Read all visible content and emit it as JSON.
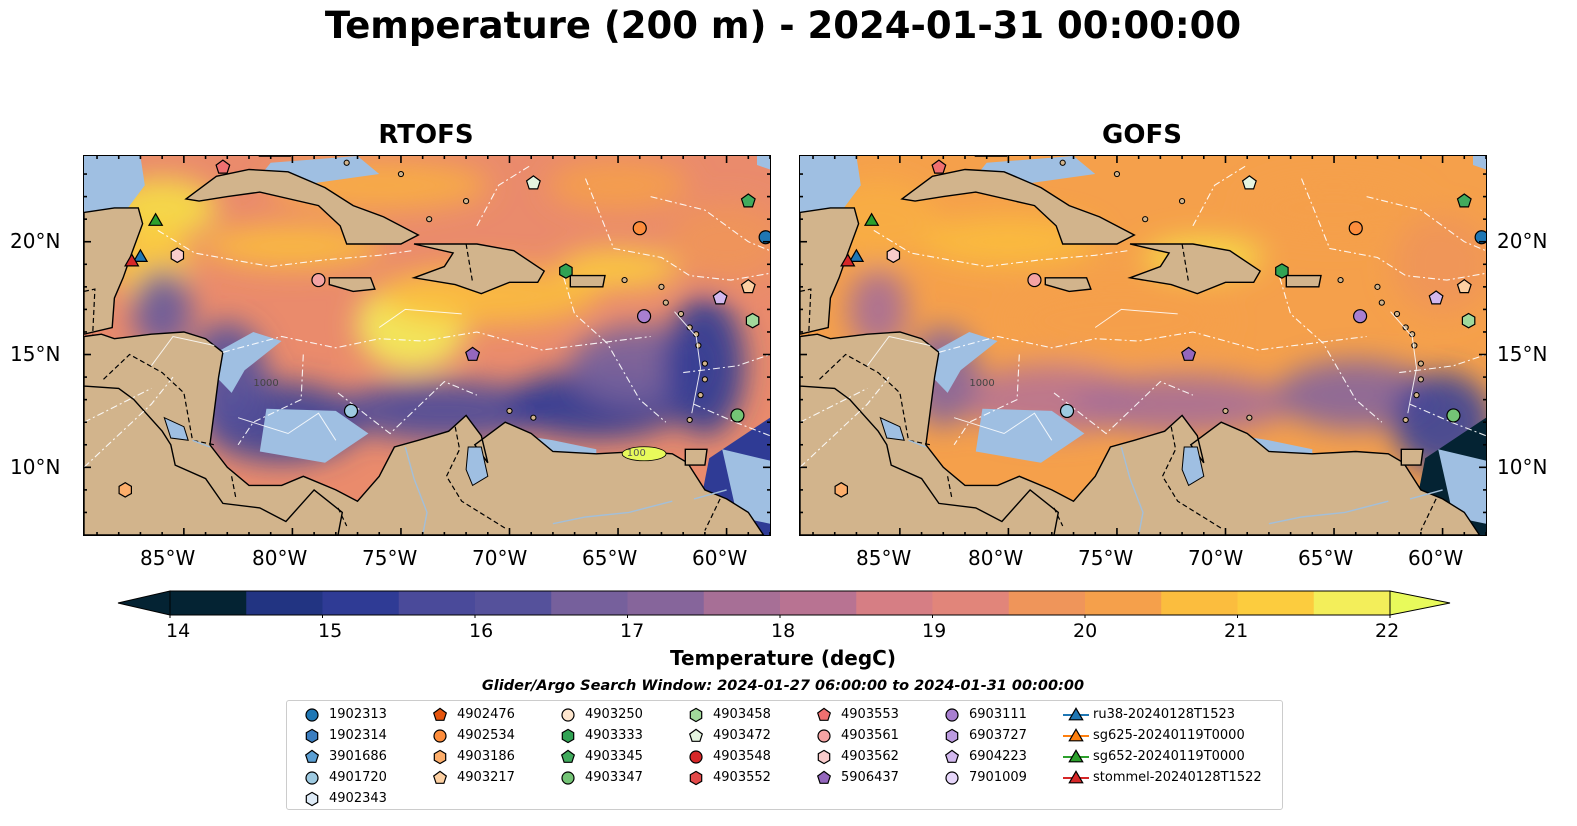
{
  "title": "Temperature (200 m) - 2024-01-31 00:00:00",
  "panels": [
    {
      "title": "RTOFS",
      "side_labels": "left"
    },
    {
      "title": "GOFS",
      "side_labels": "right"
    }
  ],
  "axes": {
    "x_ticks": [
      "85°W",
      "80°W",
      "75°W",
      "70°W",
      "65°W",
      "60°W"
    ],
    "y_ticks": [
      "20°N",
      "15°N",
      "10°N"
    ]
  },
  "contour_labels": {
    "rtofs_1000": "1000",
    "rtofs_100": "100",
    "gofs_1000": "1000"
  },
  "colorbar": {
    "label": "Temperature (degC)",
    "min": 14,
    "max": 22,
    "step": 0.5,
    "ticks": [
      "14",
      "15",
      "16",
      "17",
      "18",
      "19",
      "20",
      "21",
      "22"
    ],
    "extend": "both",
    "colormap": "thermal",
    "colors": [
      "#042333",
      "#0d2a5a",
      "#223482",
      "#2f3b95",
      "#3c4398",
      "#4a4a9a",
      "#55519b",
      "#665a9c",
      "#76609c",
      "#86659b",
      "#96699a",
      "#a76f96",
      "#b87392",
      "#c8788d",
      "#d67e84",
      "#e1857a",
      "#ea8b6c",
      "#ef955a",
      "#f5a04b",
      "#f8ae43",
      "#fbbd3e",
      "#fccc3e",
      "#f6df47",
      "#f3ee5a"
    ],
    "over_color": "#e8fa5b",
    "under_color": "#042333"
  },
  "map_colors": {
    "land": "#d2b48c",
    "shelf": "#9fbfe2",
    "deep_cold": "#042333",
    "warm": "#ef955a",
    "hot": "#f3ee5a"
  },
  "search_window": "Glider/Argo Search Window: 2024-01-27 06:00:00 to 2024-01-31 00:00:00",
  "legend": {
    "columns": [
      [
        {
          "label": "1902313",
          "marker": "circle",
          "color": "#1f77b4"
        },
        {
          "label": "1902314",
          "marker": "hexagon",
          "color": "#3a7dbf"
        },
        {
          "label": "3901686",
          "marker": "pentagon",
          "color": "#5b9fd3"
        },
        {
          "label": "4901720",
          "marker": "circle",
          "color": "#9ecae1"
        },
        {
          "label": "4902343",
          "marker": "hexagon",
          "color": "#deebf7"
        }
      ],
      [
        {
          "label": "4902476",
          "marker": "pentagon",
          "color": "#e6550d"
        },
        {
          "label": "4902534",
          "marker": "circle",
          "color": "#fd8d3c"
        },
        {
          "label": "4903186",
          "marker": "hexagon",
          "color": "#fdae6b"
        },
        {
          "label": "4903217",
          "marker": "pentagon",
          "color": "#fdd0a2"
        }
      ],
      [
        {
          "label": "4903250",
          "marker": "circle",
          "color": "#fee6ce"
        },
        {
          "label": "4903333",
          "marker": "hexagon",
          "color": "#31a354"
        },
        {
          "label": "4903345",
          "marker": "pentagon",
          "color": "#41ab5d"
        },
        {
          "label": "4903347",
          "marker": "circle",
          "color": "#74c476"
        }
      ],
      [
        {
          "label": "4903458",
          "marker": "hexagon",
          "color": "#a1d99b"
        },
        {
          "label": "4903472",
          "marker": "pentagon",
          "color": "#e5f5e0"
        },
        {
          "label": "4903548",
          "marker": "circle",
          "color": "#d62728"
        },
        {
          "label": "4903552",
          "marker": "hexagon",
          "color": "#e34a4a"
        }
      ],
      [
        {
          "label": "4903553",
          "marker": "pentagon",
          "color": "#f07070"
        },
        {
          "label": "4903561",
          "marker": "circle",
          "color": "#f4a3a3"
        },
        {
          "label": "4903562",
          "marker": "hexagon",
          "color": "#f9cccc"
        },
        {
          "label": "5906437",
          "marker": "pentagon",
          "color": "#9467bd"
        }
      ],
      [
        {
          "label": "6903111",
          "marker": "circle",
          "color": "#a87fd0"
        },
        {
          "label": "6903727",
          "marker": "hexagon",
          "color": "#bc9be0"
        },
        {
          "label": "6904223",
          "marker": "pentagon",
          "color": "#d2b8ee"
        },
        {
          "label": "7901009",
          "marker": "circle",
          "color": "#e6d6fa"
        }
      ],
      [
        {
          "label": "ru38-20240128T1523",
          "marker": "triangle",
          "color": "#1f77b4"
        },
        {
          "label": "sg625-20240119T0000",
          "marker": "triangle",
          "color": "#ff7f0e"
        },
        {
          "label": "sg652-20240119T0000",
          "marker": "triangle",
          "color": "#2ca02c"
        },
        {
          "label": "stommel-20240128T1522",
          "marker": "triangle",
          "color": "#d62728"
        }
      ]
    ]
  },
  "map_markers": [
    {
      "label": "1902313",
      "marker": "circle",
      "color": "#1f77b4",
      "lon": -58.2,
      "lat": 20.2
    },
    {
      "label": "4903472",
      "marker": "pentagon",
      "color": "#e5f5e0",
      "lon": -68.9,
      "lat": 22.6
    },
    {
      "label": "4903345",
      "marker": "pentagon",
      "color": "#41ab5d",
      "lon": -59.0,
      "lat": 21.8
    },
    {
      "label": "4902534",
      "marker": "circle",
      "color": "#fd8d3c",
      "lon": -64.0,
      "lat": 20.6
    },
    {
      "label": "4903333",
      "marker": "hexagon",
      "color": "#31a354",
      "lon": -67.4,
      "lat": 18.7
    },
    {
      "label": "6904223",
      "marker": "pentagon",
      "color": "#d2b8ee",
      "lon": -60.3,
      "lat": 17.5
    },
    {
      "label": "4903217",
      "marker": "pentagon",
      "color": "#fdd0a2",
      "lon": -59.0,
      "lat": 18.0
    },
    {
      "label": "4903458",
      "marker": "hexagon",
      "color": "#a1d99b",
      "lon": -58.8,
      "lat": 16.5
    },
    {
      "label": "6903111",
      "marker": "circle",
      "color": "#a87fd0",
      "lon": -63.8,
      "lat": 16.7
    },
    {
      "label": "5906437",
      "marker": "pentagon",
      "color": "#9467bd",
      "lon": -71.7,
      "lat": 15.0
    },
    {
      "label": "4903561",
      "marker": "circle",
      "color": "#f4a3a3",
      "lon": -78.8,
      "lat": 18.3
    },
    {
      "label": "4903562",
      "marker": "hexagon",
      "color": "#f9cccc",
      "lon": -85.3,
      "lat": 19.4
    },
    {
      "label": "4903553",
      "marker": "pentagon",
      "color": "#f07070",
      "lon": -83.2,
      "lat": 23.3
    },
    {
      "label": "4901720",
      "marker": "circle",
      "color": "#9ecae1",
      "lon": -77.3,
      "lat": 12.5
    },
    {
      "label": "4903347",
      "marker": "circle",
      "color": "#74c476",
      "lon": -59.5,
      "lat": 12.3
    },
    {
      "label": "4903186",
      "marker": "hexagon",
      "color": "#fdae6b",
      "lon": -87.7,
      "lat": 9.0
    },
    {
      "label": "sg652-20240119T0000",
      "marker": "triangle",
      "color": "#2ca02c",
      "lon": -86.3,
      "lat": 20.9
    },
    {
      "label": "ru38-20240128T1523",
      "marker": "triangle",
      "color": "#1f77b4",
      "lon": -87.0,
      "lat": 19.3
    },
    {
      "label": "stommel-20240128T1522",
      "marker": "triangle",
      "color": "#d62728",
      "lon": -87.4,
      "lat": 19.1
    }
  ]
}
